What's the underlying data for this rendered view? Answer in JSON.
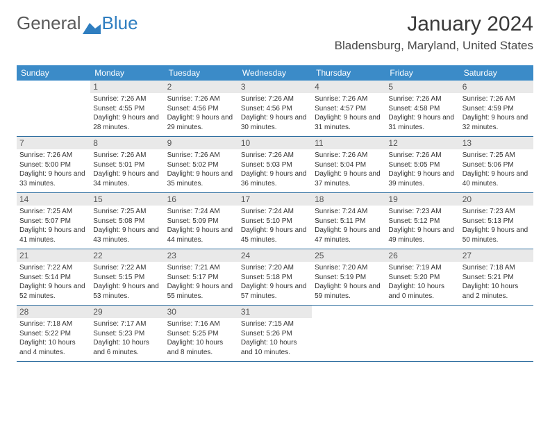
{
  "logo": {
    "word1": "General",
    "word2": "Blue"
  },
  "title": "January 2024",
  "location": "Bladensburg, Maryland, United States",
  "colors": {
    "header_bg": "#3b8bc8",
    "header_text": "#ffffff",
    "daynum_bg": "#e9e9e9",
    "border": "#2f6fa0",
    "logo_blue": "#2f7ec0"
  },
  "weekdays": [
    "Sunday",
    "Monday",
    "Tuesday",
    "Wednesday",
    "Thursday",
    "Friday",
    "Saturday"
  ],
  "days": [
    {
      "n": 1,
      "sr": "7:26 AM",
      "ss": "4:55 PM",
      "dl": "9 hours and 28 minutes."
    },
    {
      "n": 2,
      "sr": "7:26 AM",
      "ss": "4:56 PM",
      "dl": "9 hours and 29 minutes."
    },
    {
      "n": 3,
      "sr": "7:26 AM",
      "ss": "4:56 PM",
      "dl": "9 hours and 30 minutes."
    },
    {
      "n": 4,
      "sr": "7:26 AM",
      "ss": "4:57 PM",
      "dl": "9 hours and 31 minutes."
    },
    {
      "n": 5,
      "sr": "7:26 AM",
      "ss": "4:58 PM",
      "dl": "9 hours and 31 minutes."
    },
    {
      "n": 6,
      "sr": "7:26 AM",
      "ss": "4:59 PM",
      "dl": "9 hours and 32 minutes."
    },
    {
      "n": 7,
      "sr": "7:26 AM",
      "ss": "5:00 PM",
      "dl": "9 hours and 33 minutes."
    },
    {
      "n": 8,
      "sr": "7:26 AM",
      "ss": "5:01 PM",
      "dl": "9 hours and 34 minutes."
    },
    {
      "n": 9,
      "sr": "7:26 AM",
      "ss": "5:02 PM",
      "dl": "9 hours and 35 minutes."
    },
    {
      "n": 10,
      "sr": "7:26 AM",
      "ss": "5:03 PM",
      "dl": "9 hours and 36 minutes."
    },
    {
      "n": 11,
      "sr": "7:26 AM",
      "ss": "5:04 PM",
      "dl": "9 hours and 37 minutes."
    },
    {
      "n": 12,
      "sr": "7:26 AM",
      "ss": "5:05 PM",
      "dl": "9 hours and 39 minutes."
    },
    {
      "n": 13,
      "sr": "7:25 AM",
      "ss": "5:06 PM",
      "dl": "9 hours and 40 minutes."
    },
    {
      "n": 14,
      "sr": "7:25 AM",
      "ss": "5:07 PM",
      "dl": "9 hours and 41 minutes."
    },
    {
      "n": 15,
      "sr": "7:25 AM",
      "ss": "5:08 PM",
      "dl": "9 hours and 43 minutes."
    },
    {
      "n": 16,
      "sr": "7:24 AM",
      "ss": "5:09 PM",
      "dl": "9 hours and 44 minutes."
    },
    {
      "n": 17,
      "sr": "7:24 AM",
      "ss": "5:10 PM",
      "dl": "9 hours and 45 minutes."
    },
    {
      "n": 18,
      "sr": "7:24 AM",
      "ss": "5:11 PM",
      "dl": "9 hours and 47 minutes."
    },
    {
      "n": 19,
      "sr": "7:23 AM",
      "ss": "5:12 PM",
      "dl": "9 hours and 49 minutes."
    },
    {
      "n": 20,
      "sr": "7:23 AM",
      "ss": "5:13 PM",
      "dl": "9 hours and 50 minutes."
    },
    {
      "n": 21,
      "sr": "7:22 AM",
      "ss": "5:14 PM",
      "dl": "9 hours and 52 minutes."
    },
    {
      "n": 22,
      "sr": "7:22 AM",
      "ss": "5:15 PM",
      "dl": "9 hours and 53 minutes."
    },
    {
      "n": 23,
      "sr": "7:21 AM",
      "ss": "5:17 PM",
      "dl": "9 hours and 55 minutes."
    },
    {
      "n": 24,
      "sr": "7:20 AM",
      "ss": "5:18 PM",
      "dl": "9 hours and 57 minutes."
    },
    {
      "n": 25,
      "sr": "7:20 AM",
      "ss": "5:19 PM",
      "dl": "9 hours and 59 minutes."
    },
    {
      "n": 26,
      "sr": "7:19 AM",
      "ss": "5:20 PM",
      "dl": "10 hours and 0 minutes."
    },
    {
      "n": 27,
      "sr": "7:18 AM",
      "ss": "5:21 PM",
      "dl": "10 hours and 2 minutes."
    },
    {
      "n": 28,
      "sr": "7:18 AM",
      "ss": "5:22 PM",
      "dl": "10 hours and 4 minutes."
    },
    {
      "n": 29,
      "sr": "7:17 AM",
      "ss": "5:23 PM",
      "dl": "10 hours and 6 minutes."
    },
    {
      "n": 30,
      "sr": "7:16 AM",
      "ss": "5:25 PM",
      "dl": "10 hours and 8 minutes."
    },
    {
      "n": 31,
      "sr": "7:15 AM",
      "ss": "5:26 PM",
      "dl": "10 hours and 10 minutes."
    }
  ],
  "labels": {
    "sunrise": "Sunrise:",
    "sunset": "Sunset:",
    "daylight": "Daylight:"
  },
  "start_weekday": 1
}
